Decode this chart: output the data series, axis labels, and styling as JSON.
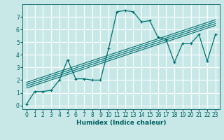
{
  "x_data": [
    0,
    1,
    2,
    3,
    4,
    5,
    6,
    7,
    8,
    9,
    10,
    11,
    12,
    13,
    14,
    15,
    16,
    17,
    18,
    19,
    20,
    21,
    22,
    23
  ],
  "y_data": [
    0.1,
    1.1,
    1.1,
    1.2,
    2.0,
    3.6,
    2.1,
    2.1,
    2.0,
    2.0,
    4.5,
    7.4,
    7.5,
    7.4,
    6.6,
    6.7,
    5.4,
    5.2,
    3.4,
    4.9,
    4.9,
    5.6,
    3.5,
    5.6
  ],
  "line_color": "#007070",
  "bg_color": "#c8e8e8",
  "grid_color": "#ffffff",
  "xlabel": "Humidex (Indice chaleur)",
  "xlim": [
    -0.5,
    23.5
  ],
  "ylim": [
    -0.3,
    8.0
  ],
  "yticks": [
    0,
    1,
    2,
    3,
    4,
    5,
    6,
    7
  ],
  "xticks": [
    0,
    1,
    2,
    3,
    4,
    5,
    6,
    7,
    8,
    9,
    10,
    11,
    12,
    13,
    14,
    15,
    16,
    17,
    18,
    19,
    20,
    21,
    22,
    23
  ],
  "figsize": [
    3.2,
    2.0
  ],
  "dpi": 100,
  "font_color": "#006060",
  "reg_offsets": [
    -0.15,
    0.0,
    0.15,
    0.3
  ]
}
